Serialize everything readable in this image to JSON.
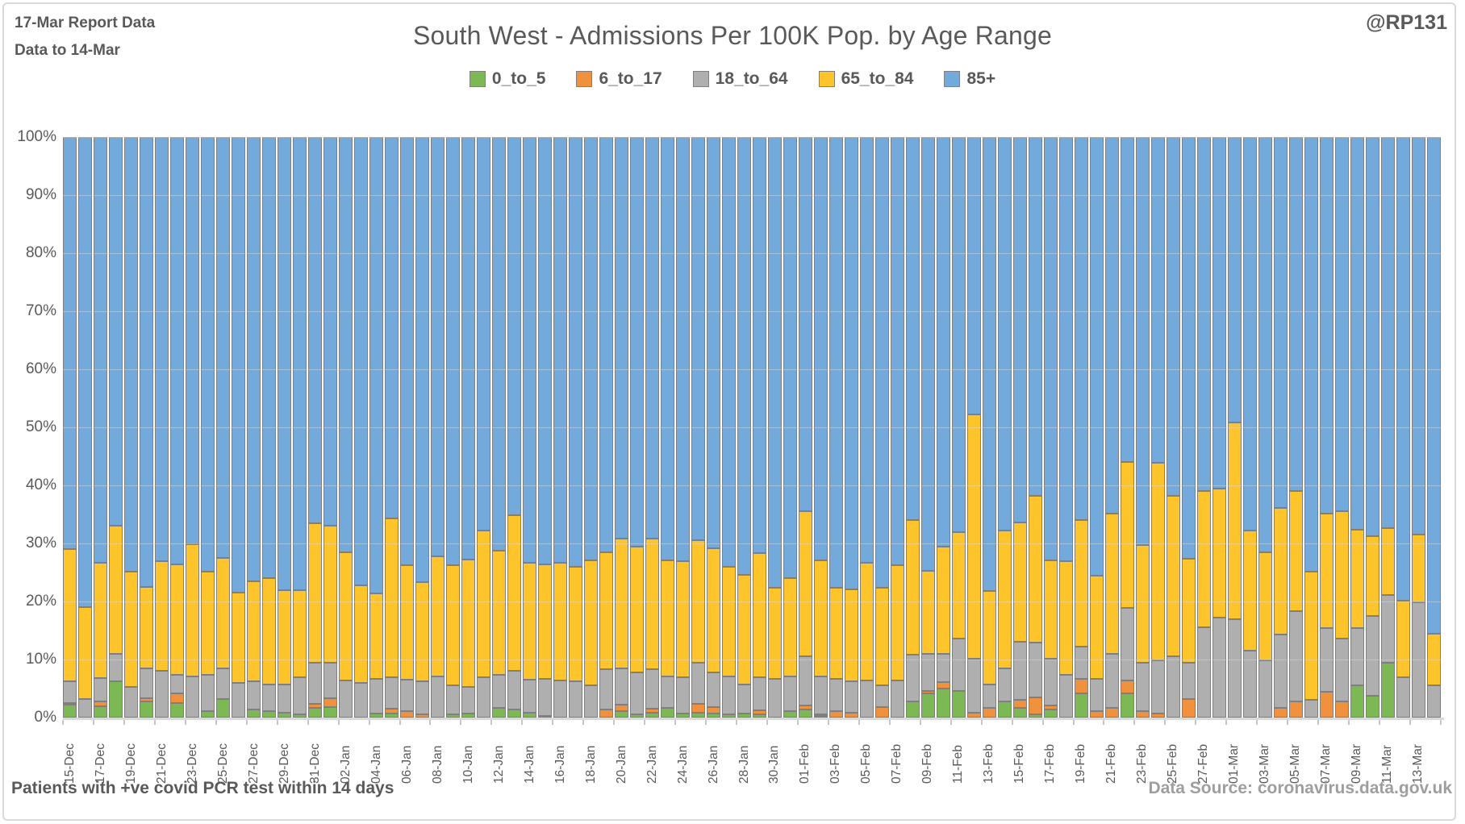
{
  "header": {
    "report_line1": "17-Mar Report Data",
    "report_line2": "Data to 14-Mar",
    "title": "South West - Admissions Per 100K Pop. by Age Range",
    "handle": "@RP131"
  },
  "footer": {
    "left": "Patients with  +ve covid PCR test within 14 days",
    "right": "Data Source: coronavirus.data.gov.uk"
  },
  "colors": {
    "green": "#7CB853",
    "orange": "#F0913E",
    "gray": "#AFAFAF",
    "yellow": "#FDC42C",
    "blue": "#74A9DB",
    "segment_border": "#7F7F7F",
    "text": "#595959"
  },
  "y_axis": {
    "ticks": [
      "100%",
      "90%",
      "80%",
      "70%",
      "60%",
      "50%",
      "40%",
      "30%",
      "20%",
      "10%",
      "0%"
    ]
  },
  "chart_data": {
    "type": "bar",
    "stacked": true,
    "percent_stacked": true,
    "title": "South West - Admissions Per 100K Pop. by Age Range",
    "ylim": [
      0,
      100
    ],
    "grid": true,
    "legend_position": "top",
    "x_label_step": 2,
    "categories": [
      "15-Dec",
      "16-Dec",
      "17-Dec",
      "18-Dec",
      "19-Dec",
      "20-Dec",
      "21-Dec",
      "22-Dec",
      "23-Dec",
      "24-Dec",
      "25-Dec",
      "26-Dec",
      "27-Dec",
      "28-Dec",
      "29-Dec",
      "30-Dec",
      "31-Dec",
      "01-Jan",
      "02-Jan",
      "03-Jan",
      "04-Jan",
      "05-Jan",
      "06-Jan",
      "07-Jan",
      "08-Jan",
      "09-Jan",
      "10-Jan",
      "11-Jan",
      "12-Jan",
      "13-Jan",
      "14-Jan",
      "15-Jan",
      "16-Jan",
      "17-Jan",
      "18-Jan",
      "19-Jan",
      "20-Jan",
      "21-Jan",
      "22-Jan",
      "23-Jan",
      "24-Jan",
      "25-Jan",
      "26-Jan",
      "27-Jan",
      "28-Jan",
      "29-Jan",
      "30-Jan",
      "31-Jan",
      "01-Feb",
      "02-Feb",
      "03-Feb",
      "04-Feb",
      "05-Feb",
      "06-Feb",
      "07-Feb",
      "08-Feb",
      "09-Feb",
      "10-Feb",
      "11-Feb",
      "12-Feb",
      "13-Feb",
      "14-Feb",
      "15-Feb",
      "16-Feb",
      "17-Feb",
      "18-Feb",
      "19-Feb",
      "20-Feb",
      "21-Feb",
      "22-Feb",
      "23-Feb",
      "24-Feb",
      "25-Feb",
      "26-Feb",
      "27-Feb",
      "28-Feb",
      "01-Mar",
      "02-Mar",
      "03-Mar",
      "04-Mar",
      "05-Mar",
      "06-Mar",
      "07-Mar",
      "08-Mar",
      "09-Mar",
      "10-Mar",
      "11-Mar",
      "12-Mar",
      "13-Mar",
      "14-Mar"
    ],
    "series": [
      {
        "name": "0_to_5",
        "color": "#7CB853",
        "values": [
          2.2,
          0,
          1.9,
          6.2,
          0,
          2.8,
          0,
          2.5,
          0,
          1.1,
          3.2,
          0,
          1.4,
          1.1,
          0.9,
          0.5,
          1.7,
          1.8,
          0,
          0,
          0.7,
          0.7,
          0,
          0,
          0,
          0.6,
          0.7,
          0,
          1.6,
          1.4,
          0.9,
          0,
          0,
          0,
          0,
          0,
          1.1,
          0.5,
          0.9,
          1.6,
          0.7,
          0.9,
          0.7,
          0.5,
          0.7,
          0.5,
          0,
          1.1,
          1.4,
          0.3,
          0,
          0,
          0,
          0,
          0,
          2.8,
          4.1,
          5.0,
          4.6,
          0,
          0,
          2.8,
          1.6,
          0.5,
          1.4,
          0,
          4.1,
          0,
          0,
          4.1,
          0,
          0,
          0,
          0,
          0,
          0,
          0,
          0,
          0,
          0,
          0,
          0,
          0,
          0,
          5.5,
          3.7,
          9.4,
          0,
          0,
          0
        ]
      },
      {
        "name": "6_to_17",
        "color": "#F0913E",
        "values": [
          0.3,
          0,
          0.9,
          0,
          0,
          0.5,
          0,
          1.6,
          0,
          0,
          0,
          0,
          0,
          0,
          0,
          0,
          0.6,
          1.6,
          0,
          0,
          0,
          0.9,
          1.1,
          0.5,
          0,
          0,
          0,
          0,
          0,
          0,
          0,
          0.3,
          0,
          0,
          0,
          1.4,
          1.1,
          0,
          0.7,
          0,
          0,
          1.5,
          1.1,
          0,
          0,
          0.7,
          0,
          0,
          0.7,
          0.3,
          1.1,
          0.9,
          0,
          1.8,
          0,
          0,
          0.5,
          1.1,
          0,
          0.9,
          1.6,
          0,
          1.4,
          3.0,
          0.7,
          0,
          2.5,
          1.1,
          1.6,
          2.3,
          1.1,
          0.7,
          0,
          3.2,
          0,
          0,
          0,
          0,
          0,
          1.6,
          2.8,
          0,
          4.4,
          2.8,
          0,
          0,
          0,
          0,
          0,
          0
        ]
      },
      {
        "name": "18_to_64",
        "color": "#AFAFAF",
        "values": [
          3.8,
          3.2,
          4.0,
          4.8,
          5.3,
          5.2,
          8.0,
          3.3,
          7.1,
          6.2,
          5.3,
          6.0,
          4.8,
          4.6,
          4.8,
          6.4,
          7.1,
          6.0,
          6.4,
          6.0,
          6.0,
          5.3,
          5.5,
          5.7,
          7.1,
          4.9,
          4.6,
          6.9,
          5.8,
          6.6,
          5.7,
          6.4,
          6.4,
          6.2,
          5.5,
          6.9,
          6.3,
          7.3,
          6.7,
          5.5,
          6.2,
          7.0,
          6.0,
          6.6,
          5.0,
          5.7,
          6.7,
          6.0,
          8.5,
          6.5,
          5.6,
          5.3,
          6.4,
          3.7,
          6.4,
          8.0,
          6.4,
          4.9,
          9.0,
          9.2,
          4.1,
          5.7,
          10.1,
          9.4,
          8.0,
          7.4,
          5.6,
          5.6,
          9.4,
          12.5,
          8.3,
          9.2,
          10.6,
          6.2,
          15.6,
          17.2,
          17.0,
          11.5,
          9.9,
          12.7,
          15.6,
          3.0,
          11.0,
          10.8,
          9.9,
          13.8,
          11.7,
          6.9,
          19.8,
          5.5
        ]
      },
      {
        "name": "65_to_84",
        "color": "#FDC42C",
        "values": [
          22.7,
          15.8,
          19.9,
          22.0,
          19.8,
          14.0,
          18.9,
          19.0,
          22.8,
          17.8,
          19.0,
          15.5,
          17.3,
          18.3,
          16.3,
          15.1,
          24.1,
          23.6,
          22.1,
          16.8,
          14.7,
          27.4,
          19.6,
          17.2,
          20.7,
          20.7,
          21.9,
          25.3,
          21.3,
          26.9,
          20.1,
          19.7,
          20.3,
          19.8,
          21.6,
          20.2,
          22.3,
          21.6,
          22.5,
          20.0,
          20.0,
          21.2,
          21.4,
          18.9,
          18.9,
          21.4,
          15.6,
          17.0,
          25.0,
          20.0,
          15.6,
          15.9,
          20.3,
          16.8,
          19.8,
          23.2,
          14.3,
          18.4,
          18.4,
          42.1,
          16.1,
          23.7,
          20.5,
          25.3,
          17.0,
          19.5,
          21.8,
          17.7,
          24.2,
          25.2,
          20.3,
          34.0,
          27.6,
          18.0,
          23.5,
          22.3,
          33.8,
          20.7,
          18.6,
          21.8,
          20.7,
          22.1,
          19.8,
          22.0,
          17.0,
          13.8,
          11.5,
          13.3,
          11.7,
          9.0
        ]
      },
      {
        "name": "85+",
        "color": "#74A9DB",
        "values": "remainder_to_100"
      }
    ]
  }
}
